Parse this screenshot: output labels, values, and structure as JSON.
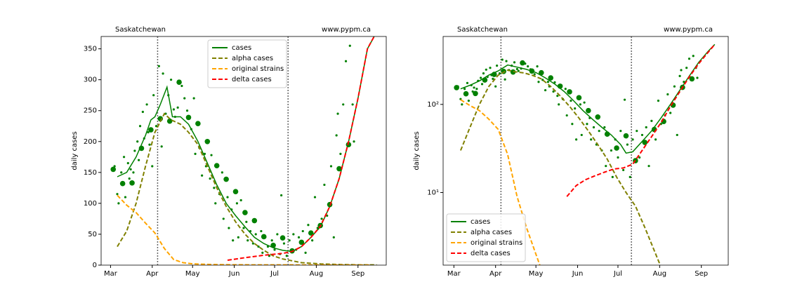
{
  "chart_data": [
    {
      "type": "line",
      "region": "Saskatchewan",
      "source": "www.pypm.ca",
      "ylabel": "daily cases",
      "log_y": false,
      "legend": "upper center",
      "xlim": [
        -7,
        205
      ],
      "ylim": [
        0,
        370
      ],
      "xticks": [
        {
          "value": 0,
          "label": "Mar"
        },
        {
          "value": 31,
          "label": "Apr"
        },
        {
          "value": 61,
          "label": "May"
        },
        {
          "value": 92,
          "label": "Jun"
        },
        {
          "value": 122,
          "label": "Jul"
        },
        {
          "value": 153,
          "label": "Aug"
        },
        {
          "value": 184,
          "label": "Sep"
        }
      ],
      "yticks": [
        0,
        50,
        100,
        150,
        200,
        250,
        300,
        350
      ],
      "vlines": [
        35,
        132
      ],
      "points": {
        "color": "#008000",
        "x": [
          3,
          5,
          6,
          8,
          10,
          11,
          13,
          14,
          15,
          17,
          18,
          20,
          21,
          22,
          24,
          25,
          27,
          28,
          29,
          31,
          32,
          34,
          36,
          38,
          39,
          41,
          43,
          45,
          47,
          48,
          50,
          53,
          55,
          57,
          60,
          62,
          63,
          66,
          68,
          70,
          71,
          74,
          75,
          77,
          78,
          81,
          83,
          84,
          87,
          88,
          90,
          91,
          94,
          95,
          97,
          99,
          101,
          102,
          104,
          106,
          108,
          110,
          112,
          113,
          115,
          117,
          118,
          120,
          122,
          124,
          126,
          127,
          129,
          131,
          133,
          136,
          138,
          140,
          143,
          145,
          147,
          150,
          152,
          154,
          157,
          159,
          161,
          164,
          166,
          168,
          169,
          171,
          173,
          175,
          178,
          180,
          181
        ],
        "values": [
          160,
          115,
          100,
          150,
          175,
          110,
          165,
          140,
          155,
          150,
          185,
          200,
          170,
          225,
          248,
          205,
          260,
          215,
          195,
          160,
          275,
          225,
          322,
          192,
          310,
          245,
          275,
          300,
          252,
          240,
          255,
          290,
          270,
          250,
          220,
          270,
          180,
          190,
          145,
          180,
          160,
          140,
          178,
          125,
          100,
          115,
          150,
          75,
          110,
          60,
          90,
          40,
          100,
          45,
          105,
          60,
          70,
          40,
          55,
          35,
          50,
          30,
          55,
          20,
          45,
          30,
          15,
          40,
          25,
          50,
          18,
          113,
          35,
          15,
          40,
          50,
          25,
          45,
          55,
          20,
          65,
          40,
          110,
          60,
          75,
          130,
          80,
          160,
          45,
          210,
          245,
          180,
          260,
          330,
          355,
          260,
          200
        ]
      },
      "weekly_points": {
        "color": "#008000",
        "x": [
          2,
          9,
          16,
          23,
          30,
          37,
          44,
          51,
          58,
          65,
          72,
          79,
          86,
          93,
          100,
          107,
          114,
          121,
          128,
          135,
          142,
          149,
          156,
          163,
          170,
          177
        ],
        "values": [
          155,
          132,
          133,
          189,
          219,
          237,
          233,
          296,
          239,
          229,
          200,
          161,
          139,
          119,
          85,
          72,
          46,
          32,
          44,
          23,
          37,
          52,
          64,
          98,
          156,
          195
        ]
      },
      "series": [
        {
          "name": "cases",
          "color": "#008000",
          "style": "solid",
          "x": [
            5,
            12,
            19,
            26,
            30,
            33,
            37,
            42,
            46,
            52,
            58,
            65,
            72,
            79,
            86,
            93,
            100,
            107,
            114,
            121,
            128,
            135,
            142,
            149,
            156,
            163,
            170,
            177,
            184,
            191,
            196
          ],
          "values": [
            143,
            150,
            175,
            210,
            235,
            240,
            260,
            288,
            240,
            240,
            228,
            200,
            165,
            130,
            100,
            80,
            62,
            45,
            35,
            28,
            24,
            22,
            30,
            45,
            62,
            95,
            140,
            200,
            270,
            350,
            370
          ]
        },
        {
          "name": "alpha cases",
          "color": "#808000",
          "style": "dashed",
          "x": [
            5,
            12,
            19,
            26,
            33,
            40,
            45,
            52,
            58,
            65,
            72,
            79,
            86,
            93,
            100,
            107,
            114,
            121,
            128,
            135,
            142,
            156,
            170,
            184,
            198
          ],
          "values": [
            30,
            55,
            100,
            160,
            215,
            245,
            235,
            228,
            215,
            195,
            160,
            125,
            95,
            70,
            50,
            35,
            24,
            15,
            10,
            7,
            4,
            2,
            1,
            0.5,
            0.3
          ]
        },
        {
          "name": "original strains",
          "color": "#ffa500",
          "style": "dashed",
          "x": [
            5,
            12,
            19,
            26,
            33,
            40,
            47,
            54,
            61,
            75,
            90,
            110,
            140,
            170,
            194
          ],
          "values": [
            113,
            97,
            85,
            68,
            52,
            27,
            9,
            4,
            2,
            1,
            0.6,
            0.4,
            0.3,
            0.2,
            0.1
          ]
        },
        {
          "name": "delta cases",
          "color": "#ff0000",
          "style": "dashed",
          "x": [
            87,
            100,
            114,
            128,
            135,
            142,
            149,
            156,
            163,
            170,
            177,
            184,
            191,
            196
          ],
          "values": [
            8,
            12,
            16,
            19,
            22,
            30,
            45,
            63,
            95,
            140,
            200,
            270,
            350,
            370
          ]
        }
      ]
    },
    {
      "type": "line",
      "region": "Saskatchewan",
      "source": "www.pypm.ca",
      "ylabel": "daily cases",
      "log_y": true,
      "legend": "lower left",
      "xlim": [
        -8,
        204
      ],
      "ylim": [
        1.5,
        590
      ],
      "xticks": [
        {
          "value": 0,
          "label": "Mar"
        },
        {
          "value": 31,
          "label": "Apr"
        },
        {
          "value": 61,
          "label": "May"
        },
        {
          "value": 92,
          "label": "Jun"
        },
        {
          "value": 122,
          "label": "Jul"
        },
        {
          "value": 153,
          "label": "Aug"
        },
        {
          "value": 184,
          "label": "Sep"
        }
      ],
      "yticks": [
        {
          "value": 10,
          "label": "10¹"
        },
        {
          "value": 100,
          "label": "10²"
        }
      ],
      "vlines": [
        35,
        132
      ],
      "points": {
        "color": "#008000",
        "x": [
          3,
          5,
          6,
          8,
          10,
          11,
          13,
          14,
          15,
          17,
          18,
          20,
          21,
          22,
          24,
          25,
          27,
          28,
          29,
          31,
          32,
          34,
          36,
          38,
          39,
          41,
          43,
          45,
          47,
          48,
          50,
          53,
          55,
          57,
          60,
          62,
          63,
          66,
          68,
          70,
          71,
          74,
          75,
          77,
          78,
          81,
          83,
          84,
          87,
          88,
          90,
          91,
          94,
          95,
          97,
          99,
          101,
          102,
          104,
          106,
          108,
          110,
          112,
          113,
          115,
          117,
          118,
          120,
          122,
          124,
          126,
          127,
          129,
          131,
          133,
          136,
          138,
          140,
          143,
          145,
          147,
          150,
          152,
          154,
          157,
          159,
          161,
          164,
          166,
          168,
          169,
          171,
          173,
          175,
          178,
          180,
          181
        ],
        "values": [
          160,
          115,
          100,
          150,
          175,
          110,
          165,
          140,
          155,
          150,
          185,
          200,
          170,
          225,
          248,
          205,
          260,
          215,
          195,
          160,
          275,
          225,
          322,
          192,
          310,
          245,
          275,
          300,
          252,
          240,
          255,
          290,
          270,
          250,
          220,
          270,
          180,
          190,
          145,
          180,
          160,
          140,
          178,
          125,
          100,
          115,
          150,
          75,
          110,
          60,
          90,
          40,
          100,
          45,
          105,
          60,
          70,
          40,
          55,
          35,
          50,
          30,
          55,
          20,
          45,
          30,
          15,
          40,
          25,
          50,
          18,
          113,
          35,
          15,
          40,
          50,
          25,
          45,
          55,
          20,
          65,
          40,
          110,
          60,
          75,
          130,
          80,
          160,
          45,
          210,
          245,
          180,
          260,
          330,
          355,
          260,
          200
        ]
      },
      "weekly_points": {
        "color": "#008000",
        "x": [
          2,
          9,
          16,
          23,
          30,
          37,
          44,
          51,
          58,
          65,
          72,
          79,
          86,
          93,
          100,
          107,
          114,
          121,
          128,
          135,
          142,
          149,
          156,
          163,
          170,
          177
        ],
        "values": [
          155,
          132,
          133,
          189,
          219,
          237,
          233,
          296,
          239,
          229,
          200,
          161,
          139,
          119,
          85,
          72,
          46,
          32,
          44,
          23,
          37,
          52,
          64,
          98,
          156,
          195
        ]
      },
      "series": [
        {
          "name": "cases",
          "color": "#008000",
          "style": "solid",
          "x": [
            5,
            12,
            19,
            26,
            33,
            40,
            47,
            54,
            61,
            68,
            75,
            82,
            89,
            96,
            103,
            110,
            117,
            124,
            128,
            133,
            140,
            147,
            154,
            161,
            168,
            175,
            182,
            189,
            194
          ],
          "values": [
            150,
            165,
            185,
            215,
            240,
            280,
            265,
            250,
            230,
            200,
            170,
            140,
            110,
            85,
            68,
            55,
            45,
            35,
            28,
            29,
            38,
            50,
            70,
            100,
            145,
            210,
            300,
            400,
            480
          ]
        },
        {
          "name": "alpha cases",
          "color": "#808000",
          "style": "dashed",
          "x": [
            5,
            12,
            19,
            26,
            33,
            40,
            45,
            52,
            58,
            65,
            72,
            79,
            86,
            93,
            100,
            107,
            114,
            121,
            128,
            135,
            142,
            156
          ],
          "values": [
            30,
            55,
            100,
            160,
            215,
            245,
            235,
            228,
            215,
            195,
            160,
            125,
            95,
            70,
            50,
            35,
            24,
            15,
            10,
            7,
            4,
            1.2
          ]
        },
        {
          "name": "original strains",
          "color": "#ffa500",
          "style": "dashed",
          "x": [
            5,
            12,
            19,
            26,
            33,
            40,
            47,
            54,
            61,
            68
          ],
          "values": [
            113,
            97,
            85,
            68,
            52,
            27,
            9,
            4,
            2,
            1
          ]
        },
        {
          "name": "delta cases",
          "color": "#ff0000",
          "style": "dashed",
          "x": [
            84,
            91,
            98,
            105,
            112,
            119,
            126,
            133,
            140,
            147,
            154,
            161,
            168,
            175,
            182,
            189,
            194
          ],
          "values": [
            9,
            12,
            14,
            15.5,
            17,
            18.5,
            19,
            21,
            30,
            43,
            62,
            95,
            140,
            205,
            290,
            390,
            480
          ]
        }
      ]
    }
  ]
}
